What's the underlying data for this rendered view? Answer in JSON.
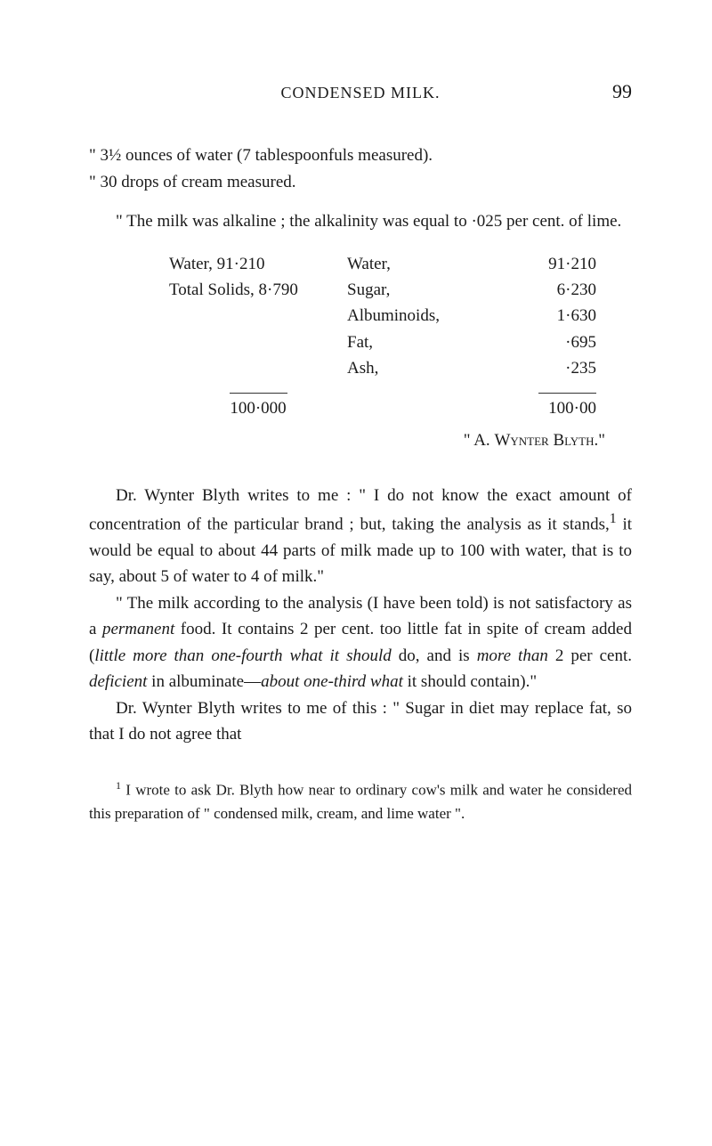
{
  "page": {
    "running_header": "CONDENSED MILK.",
    "number": "99"
  },
  "lines": {
    "l1": "\" 3½ ounces of water (7 tablespoonfuls measured).",
    "l2": "\" 30 drops of cream measured."
  },
  "para1": "\" The milk was alkaline ; the alkalinity was equal to ·025 per cent. of lime.",
  "analysis": {
    "left": {
      "row1_label": "Water, 91·210",
      "row2_label": "Total Solids,  8·790"
    },
    "right": {
      "r1_label": "Water,",
      "r1_value": "91·210",
      "r2_label": "Sugar,",
      "r2_value": "6·230",
      "r3_label": "Albuminoids,",
      "r3_value": "1·630",
      "r4_label": "Fat,",
      "r4_value": "·695",
      "r5_label": "Ash,",
      "r5_value": "·235"
    },
    "total_left": "100·000",
    "total_right": "100·00"
  },
  "signature": {
    "prefix": "\" A. ",
    "name": "Wynter Blyth.\""
  },
  "para2a": "Dr. Wynter Blyth writes to me : \" I do not know the exact amount of concentration of the particular brand ; but, taking the analysis as it stands,",
  "para2b": " it would be equal to about 44 parts of milk made up to 100 with water, that is to say, about 5 of water to 4 of milk.\"",
  "para3a": "\" The milk according to the analysis (I have been told) is not satisfactory as a ",
  "para3_i1": "permanent",
  "para3b": " food. It contains 2 per cent. too little fat in spite of cream added (",
  "para3_i2": "little more than one-fourth what it should",
  "para3c": " do, and is ",
  "para3_i3": "more than",
  "para3d": " 2 per cent. ",
  "para3_i4": "deficient",
  "para3e": " in albuminate—",
  "para3_i5": "about one-third what",
  "para3f": " it should contain).\"",
  "para4": "Dr. Wynter Blyth writes to me of this : \" Sugar in diet may replace fat, so that I do not agree that",
  "footnote": {
    "marker": "1",
    "text": " I wrote to ask Dr. Blyth how near to ordinary cow's milk and water he considered this preparation of \" condensed milk, cream, and lime water \"."
  },
  "sup1": "1"
}
